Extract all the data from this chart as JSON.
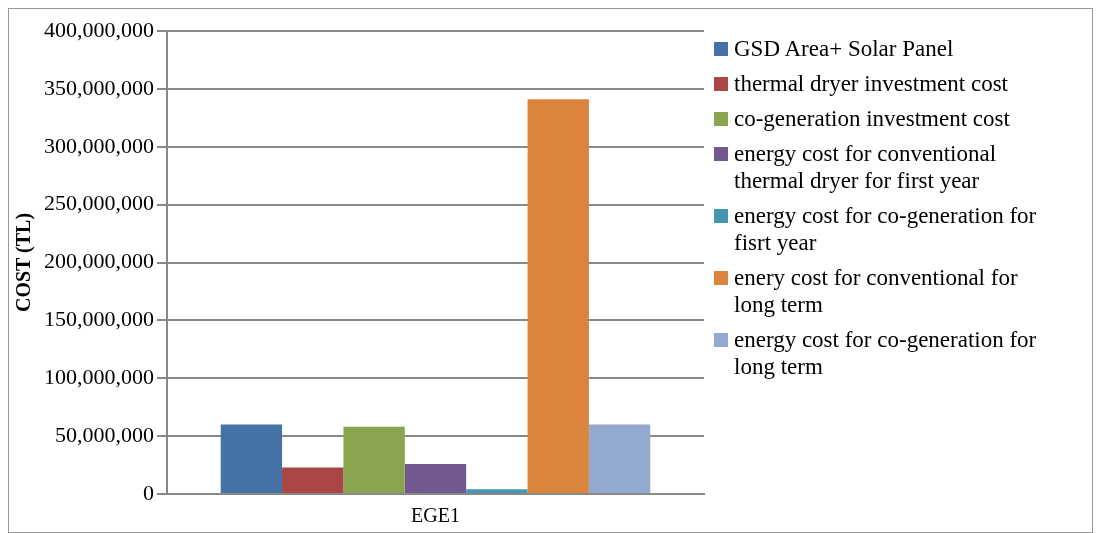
{
  "chart_data": {
    "type": "bar",
    "ylabel": "COST (TL)",
    "categories": [
      "EGE1"
    ],
    "series": [
      {
        "name": "GSD Area+ Solar Panel",
        "color": "#4572a7",
        "values": [
          60000000
        ]
      },
      {
        "name": "thermal dryer investment cost",
        "color": "#aa4643",
        "values": [
          23000000
        ]
      },
      {
        "name": "co-generation investment cost",
        "color": "#89a54e",
        "values": [
          58000000
        ]
      },
      {
        "name": "energy cost for conventional thermal dryer for first year",
        "color": "#71588f",
        "values": [
          26000000
        ]
      },
      {
        "name": "energy cost for co-generation for fisrt year",
        "color": "#4198af",
        "values": [
          4000000
        ]
      },
      {
        "name": "enery cost for conventional for long term",
        "color": "#db843d",
        "values": [
          341000000
        ]
      },
      {
        "name": "energy cost for co-generation for long term",
        "color": "#93a9cf",
        "values": [
          60000000
        ]
      }
    ],
    "ylim": [
      0,
      400000000
    ],
    "yticks": [
      0,
      {
        "value": 50000000,
        "label": "50,000,000"
      },
      {
        "value": 100000000,
        "label": "100,000,000"
      },
      {
        "value": 150000000,
        "label": "150,000,000"
      },
      {
        "value": 200000000,
        "label": "200,000,000"
      },
      {
        "value": 250000000,
        "label": "250,000,000"
      },
      {
        "value": 300000000,
        "label": "300,000,000"
      },
      {
        "value": 350000000,
        "label": "350,000,000"
      },
      {
        "value": 400000000,
        "label": "400,000,000"
      }
    ],
    "grid": "y",
    "legend": "right"
  }
}
